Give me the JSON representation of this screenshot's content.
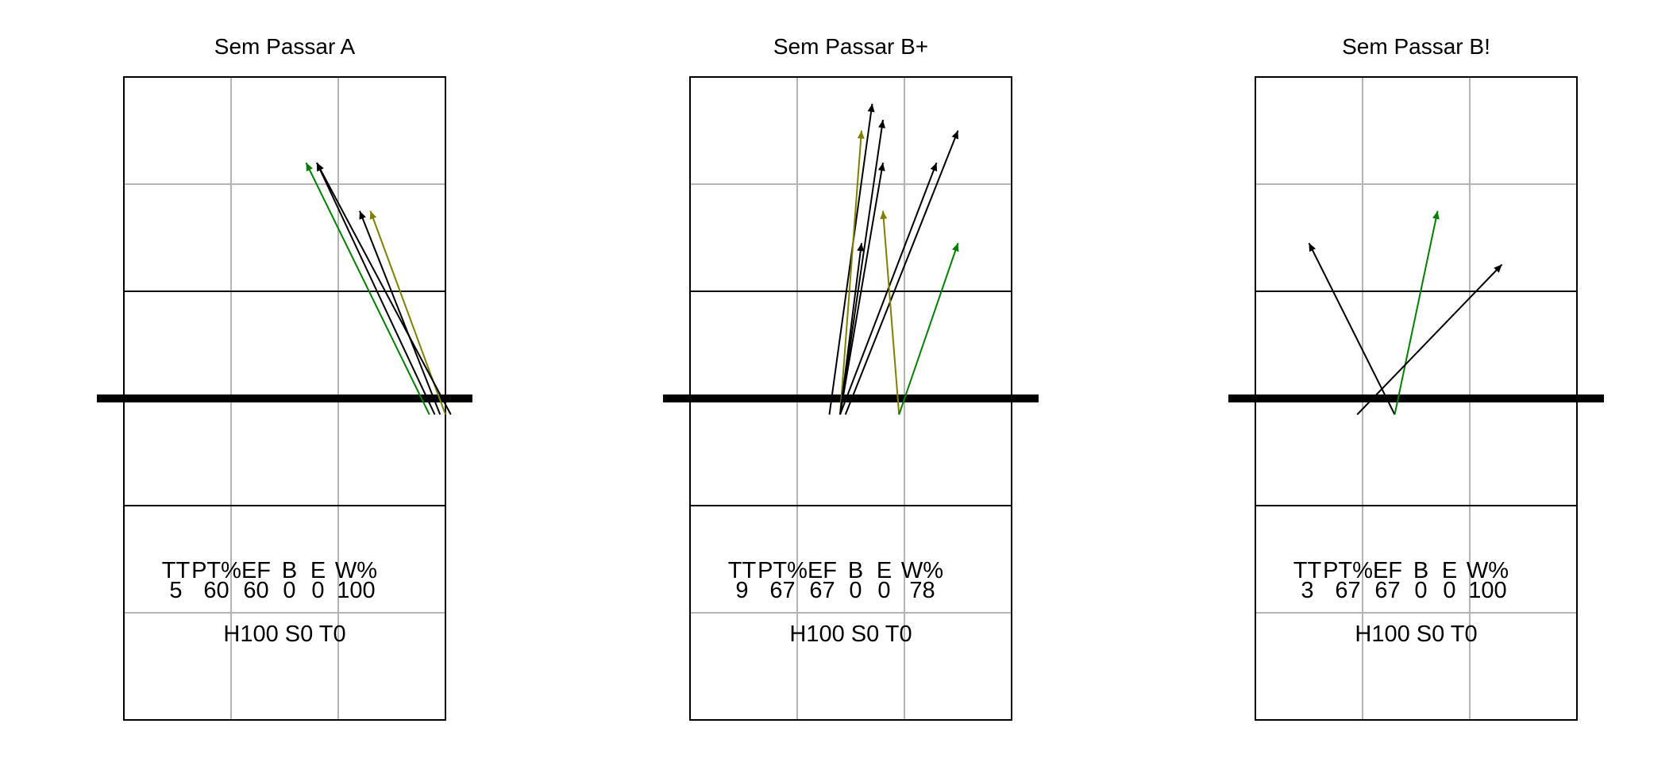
{
  "chart_data": [
    {
      "type": "court-arrow-diagram",
      "title": "Sem Passar A",
      "stats": {
        "headers": [
          "TT",
          "PT%",
          "EF",
          "B",
          "E",
          "W%"
        ],
        "values": [
          "5",
          "60",
          "60",
          "0",
          "0",
          "100"
        ]
      },
      "footer": "H100 S0 T0",
      "arrows": [
        {
          "x0": 2.85,
          "y0": 2.85,
          "x1": 1.7,
          "y1": 5.2,
          "color": "#008000"
        },
        {
          "x0": 2.9,
          "y0": 2.85,
          "x1": 1.8,
          "y1": 5.2,
          "color": "#000000"
        },
        {
          "x0": 2.95,
          "y0": 2.85,
          "x1": 2.2,
          "y1": 4.75,
          "color": "#000000"
        },
        {
          "x0": 3.0,
          "y0": 2.85,
          "x1": 2.3,
          "y1": 4.75,
          "color": "#808000"
        },
        {
          "x0": 3.05,
          "y0": 2.85,
          "x1": 1.8,
          "y1": 5.2,
          "color": "#000000"
        }
      ]
    },
    {
      "type": "court-arrow-diagram",
      "title": "Sem Passar B+",
      "stats": {
        "headers": [
          "TT",
          "PT%",
          "EF",
          "B",
          "E",
          "W%"
        ],
        "values": [
          "9",
          "67",
          "67",
          "0",
          "0",
          "78"
        ]
      },
      "footer": "H100 S0 T0",
      "arrows": [
        {
          "x0": 1.3,
          "y0": 2.85,
          "x1": 1.7,
          "y1": 5.75,
          "color": "#000000"
        },
        {
          "x0": 1.4,
          "y0": 2.85,
          "x1": 1.6,
          "y1": 5.5,
          "color": "#808000"
        },
        {
          "x0": 1.4,
          "y0": 2.85,
          "x1": 1.8,
          "y1": 5.6,
          "color": "#000000"
        },
        {
          "x0": 1.4,
          "y0": 2.85,
          "x1": 1.8,
          "y1": 5.2,
          "color": "#000000"
        },
        {
          "x0": 1.4,
          "y0": 2.85,
          "x1": 2.3,
          "y1": 5.2,
          "color": "#000000"
        },
        {
          "x0": 1.4,
          "y0": 2.85,
          "x1": 1.6,
          "y1": 4.45,
          "color": "#000000"
        },
        {
          "x0": 1.45,
          "y0": 2.85,
          "x1": 2.5,
          "y1": 5.5,
          "color": "#000000"
        },
        {
          "x0": 1.95,
          "y0": 2.85,
          "x1": 1.8,
          "y1": 4.75,
          "color": "#808000"
        },
        {
          "x0": 1.95,
          "y0": 2.85,
          "x1": 2.5,
          "y1": 4.45,
          "color": "#008000"
        }
      ]
    },
    {
      "type": "court-arrow-diagram",
      "title": "Sem Passar B!",
      "stats": {
        "headers": [
          "TT",
          "PT%",
          "EF",
          "B",
          "E",
          "W%"
        ],
        "values": [
          "3",
          "67",
          "67",
          "0",
          "0",
          "100"
        ]
      },
      "footer": "H100 S0 T0",
      "arrows": [
        {
          "x0": 1.3,
          "y0": 2.85,
          "x1": 0.5,
          "y1": 4.45,
          "color": "#000000"
        },
        {
          "x0": 1.3,
          "y0": 2.85,
          "x1": 1.7,
          "y1": 4.75,
          "color": "#008000"
        },
        {
          "x0": 0.95,
          "y0": 2.85,
          "x1": 2.3,
          "y1": 4.25,
          "color": "#000000"
        }
      ]
    }
  ]
}
